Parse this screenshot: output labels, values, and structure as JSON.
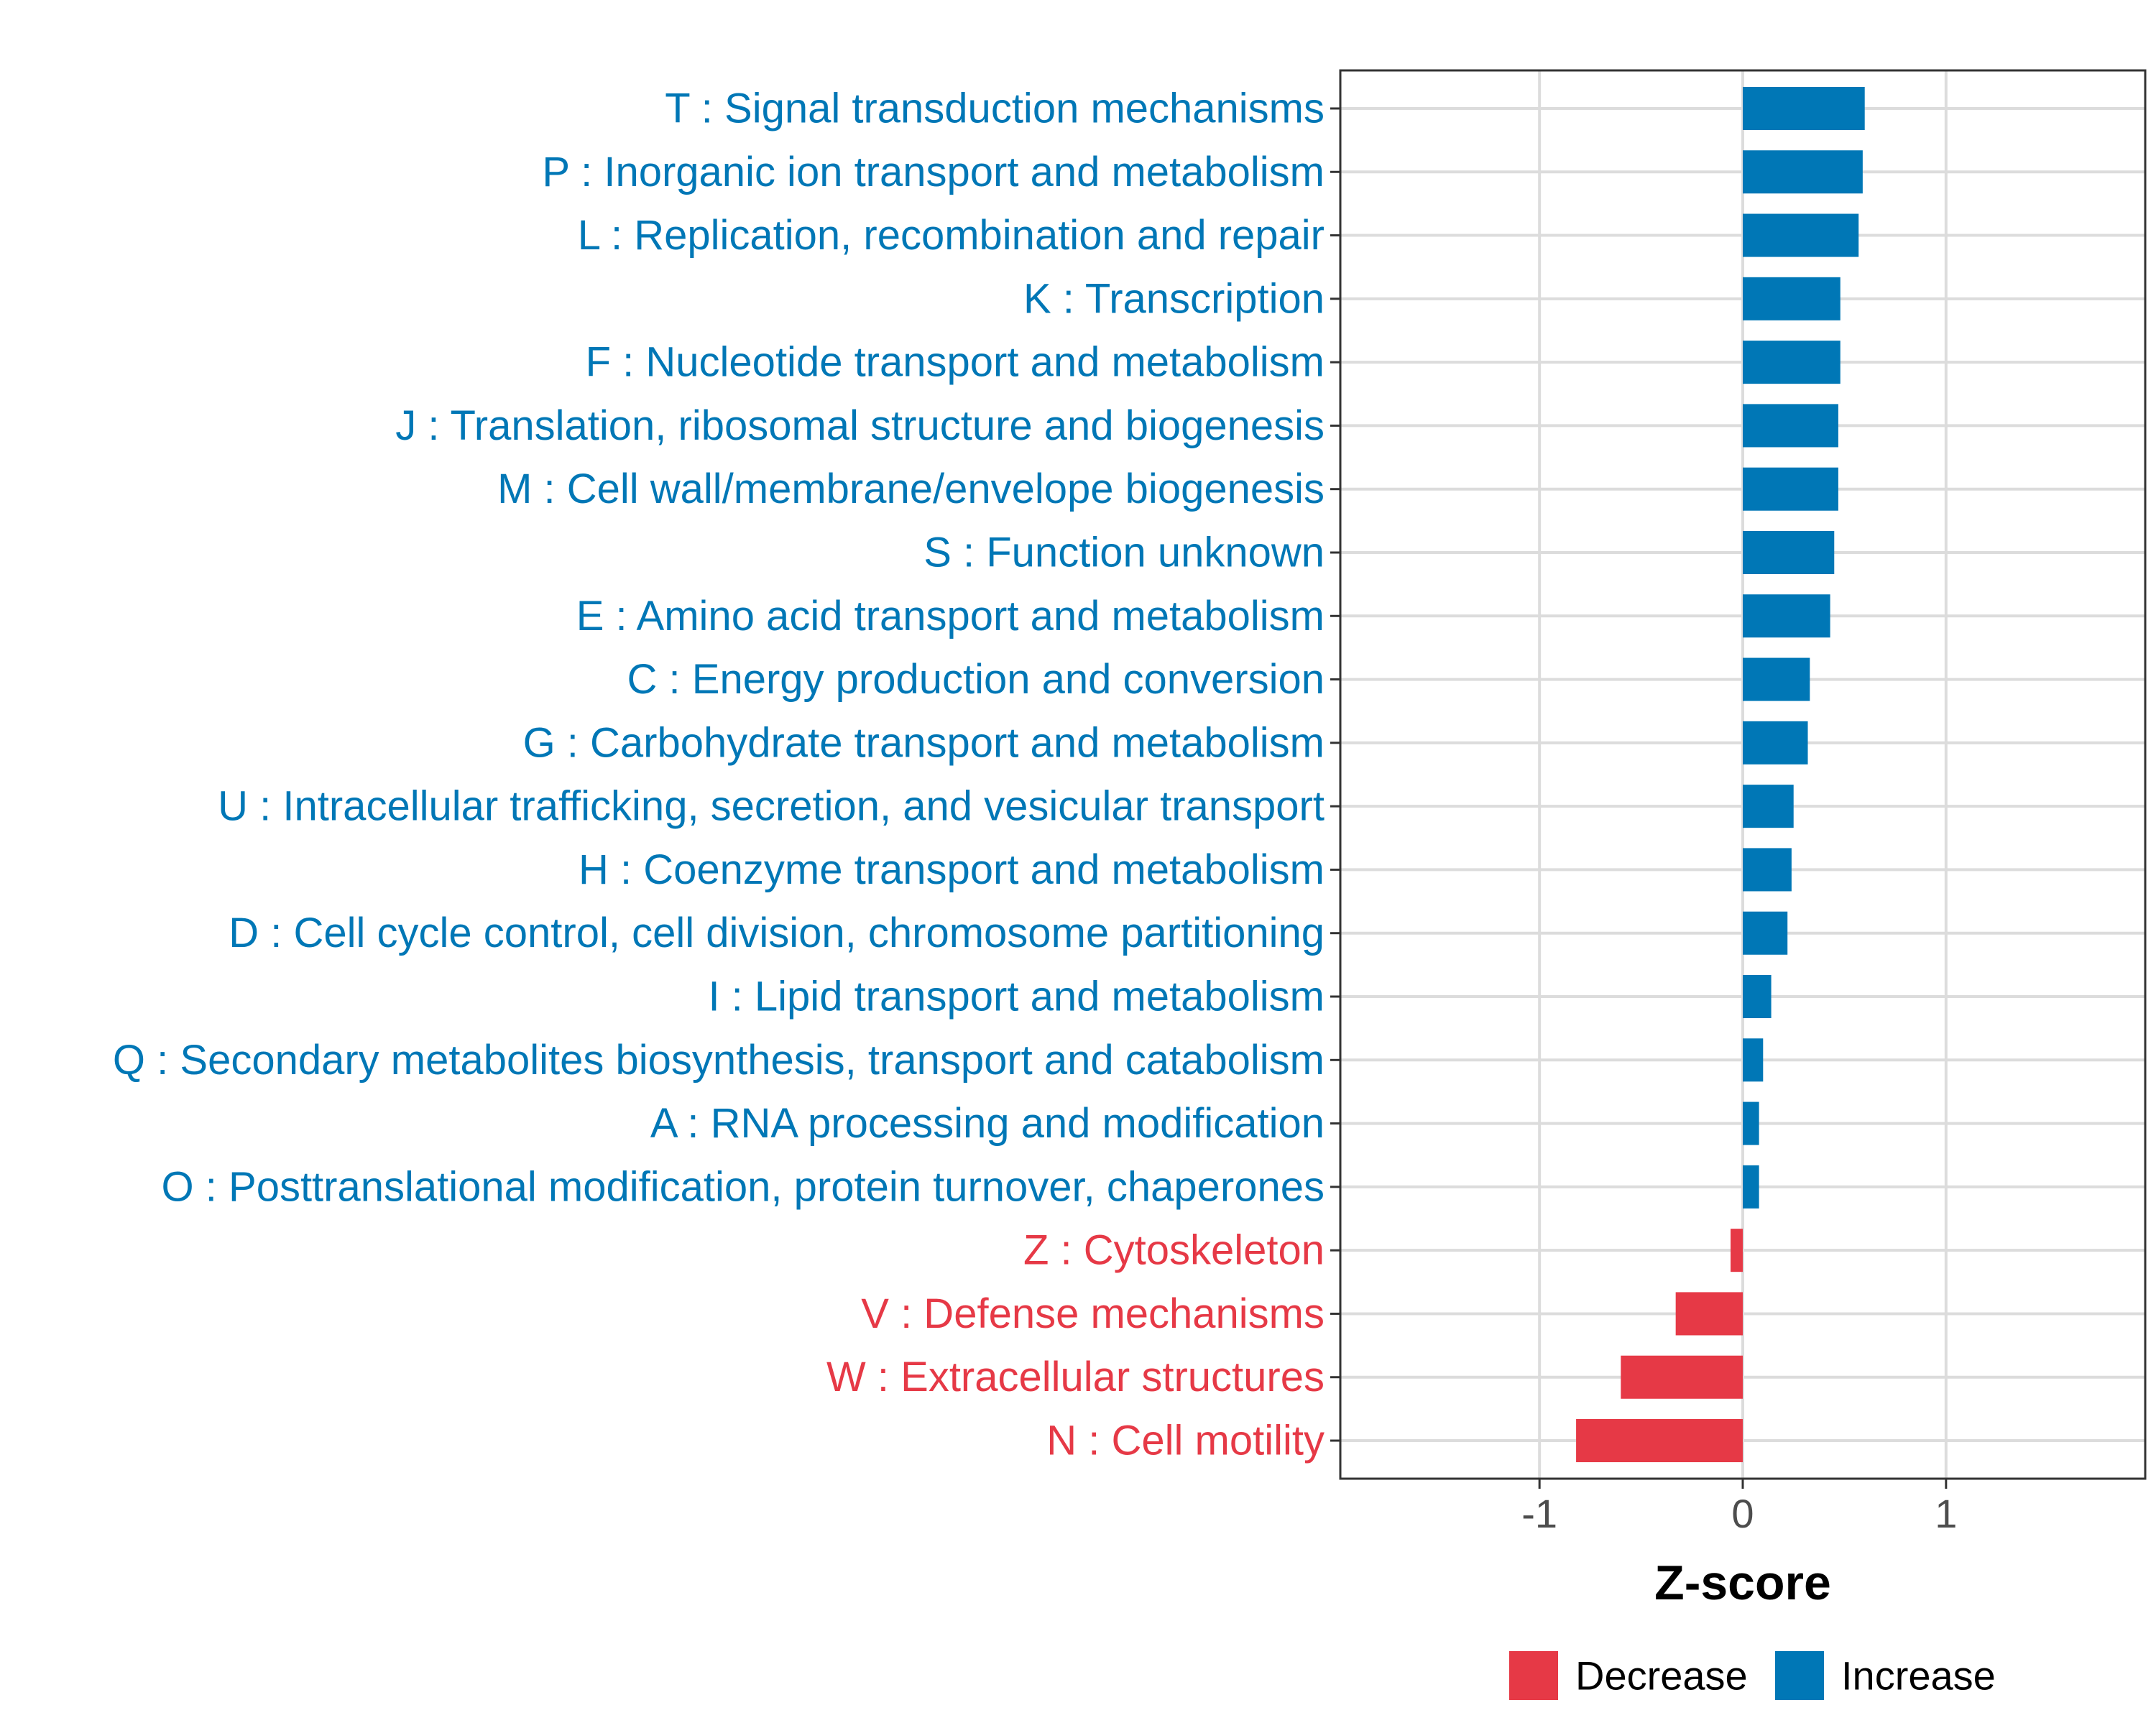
{
  "chart_data": {
    "type": "bar",
    "orientation": "horizontal",
    "title": "",
    "xlabel": "Z-score",
    "ylabel": "",
    "xlim": [
      -1.98,
      1.98
    ],
    "xticks": [
      -1,
      0,
      1
    ],
    "xtick_labels": [
      "-1",
      "0",
      "1"
    ],
    "grid": true,
    "legend_position": "bottom",
    "colors": {
      "Decrease": "#E63946",
      "Increase": "#0077B6"
    },
    "legend": [
      {
        "name": "Decrease",
        "color": "#E63946"
      },
      {
        "name": "Increase",
        "color": "#0077B6"
      }
    ],
    "categories": [
      "T : Signal transduction mechanisms",
      "P : Inorganic ion transport and metabolism",
      "L : Replication, recombination and repair",
      "K : Transcription",
      "F : Nucleotide transport and metabolism",
      "J : Translation, ribosomal structure and biogenesis",
      "M : Cell wall/membrane/envelope biogenesis",
      "S : Function unknown",
      "E : Amino acid transport and metabolism",
      "C : Energy production and conversion",
      "G : Carbohydrate transport and metabolism",
      "U : Intracellular trafficking, secretion, and vesicular transport",
      "H : Coenzyme transport and metabolism",
      "D : Cell cycle control, cell division, chromosome partitioning",
      "I : Lipid transport and metabolism",
      "Q : Secondary metabolites biosynthesis, transport and catabolism",
      "A : RNA processing and modification",
      "O : Posttranslational modification, protein turnover, chaperones",
      "Z : Cytoskeleton",
      "V : Defense mechanisms",
      "W : Extracellular structures",
      "N : Cell motility"
    ],
    "values": [
      0.6,
      0.59,
      0.57,
      0.48,
      0.48,
      0.47,
      0.47,
      0.45,
      0.43,
      0.33,
      0.32,
      0.25,
      0.24,
      0.22,
      0.14,
      0.1,
      0.08,
      0.08,
      -0.06,
      -0.33,
      -0.6,
      -0.82
    ],
    "groups": [
      "Increase",
      "Increase",
      "Increase",
      "Increase",
      "Increase",
      "Increase",
      "Increase",
      "Increase",
      "Increase",
      "Increase",
      "Increase",
      "Increase",
      "Increase",
      "Increase",
      "Increase",
      "Increase",
      "Increase",
      "Increase",
      "Decrease",
      "Decrease",
      "Decrease",
      "Decrease"
    ]
  }
}
